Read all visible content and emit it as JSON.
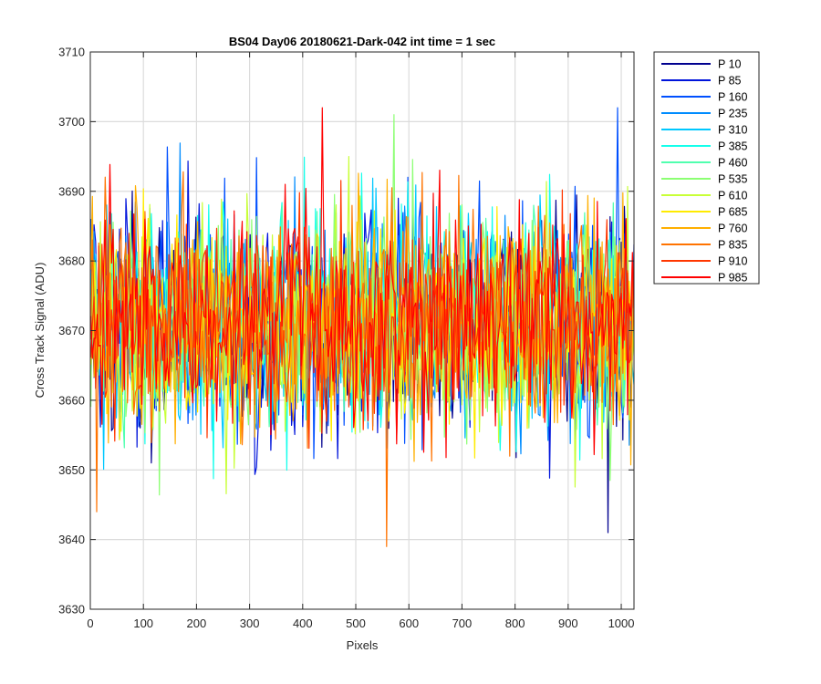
{
  "chart_data": {
    "type": "line",
    "title": "BS04 Day06 20180621-Dark-042 int time = 1 sec",
    "xlabel": "Pixels",
    "ylabel": "Cross Track Signal (ADU)",
    "xlim": [
      0,
      1024
    ],
    "ylim": [
      3630,
      3710
    ],
    "xticks": [
      0,
      100,
      200,
      300,
      400,
      500,
      600,
      700,
      800,
      900,
      1000
    ],
    "yticks": [
      3630,
      3640,
      3650,
      3660,
      3670,
      3680,
      3690,
      3700,
      3710
    ],
    "grid": true,
    "legend_position": "outside-top-right",
    "signal_summary": {
      "n_pixels": 1024,
      "mean": 3671,
      "typical_min": 3655,
      "typical_max": 3688
    },
    "notable_points": [
      {
        "series": "P 985",
        "x": 437,
        "y": 3702
      },
      {
        "series": "P 835",
        "x": 558,
        "y": 3639
      },
      {
        "series": "P 10",
        "x": 975,
        "y": 3641
      },
      {
        "series": "P 160",
        "x": 993,
        "y": 3702
      },
      {
        "series": "P 535",
        "x": 572,
        "y": 3701
      },
      {
        "series": "P 835",
        "x": 12,
        "y": 3644
      }
    ],
    "series": [
      {
        "name": "P 10",
        "color": "#00008f"
      },
      {
        "name": "P 85",
        "color": "#0014db"
      },
      {
        "name": "P 160",
        "color": "#0050ff"
      },
      {
        "name": "P 235",
        "color": "#008cff"
      },
      {
        "name": "P 310",
        "color": "#00c8ff"
      },
      {
        "name": "P 385",
        "color": "#14ffeb"
      },
      {
        "name": "P 460",
        "color": "#50ffaf"
      },
      {
        "name": "P 535",
        "color": "#8cff73"
      },
      {
        "name": "P 610",
        "color": "#c8ff37"
      },
      {
        "name": "P 685",
        "color": "#ffeb00"
      },
      {
        "name": "P 760",
        "color": "#ffaf00"
      },
      {
        "name": "P 835",
        "color": "#ff7300"
      },
      {
        "name": "P 910",
        "color": "#ff3700"
      },
      {
        "name": "P 985",
        "color": "#ff0000"
      }
    ]
  }
}
